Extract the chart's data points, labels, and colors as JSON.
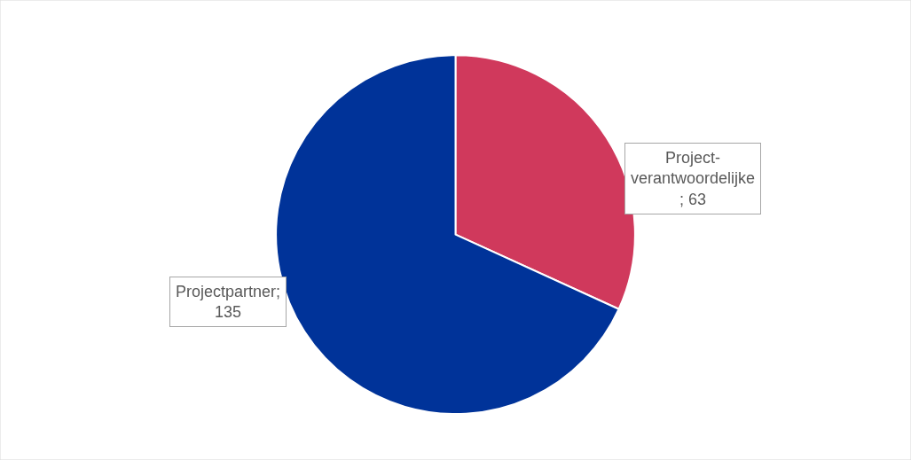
{
  "chart_data": {
    "type": "pie",
    "categories": [
      "Project-verantwoordelijke",
      "Projectpartner"
    ],
    "values": [
      63,
      135
    ],
    "value_labels": [
      "; 63",
      "; 135"
    ],
    "colors": [
      "#d0395c",
      "#003399"
    ],
    "data_labels": true,
    "legend": false
  }
}
